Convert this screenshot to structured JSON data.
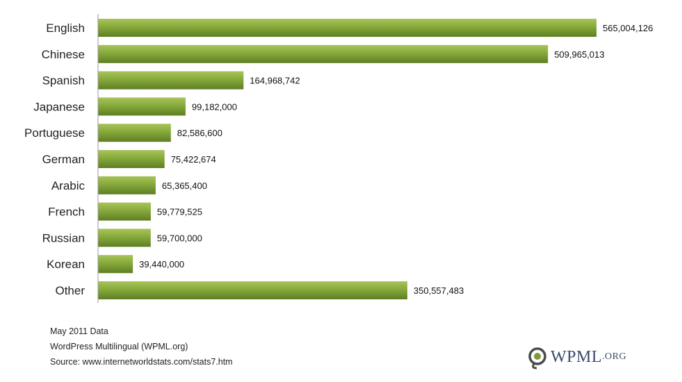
{
  "chart_data": {
    "type": "bar",
    "orientation": "horizontal",
    "categories": [
      "English",
      "Chinese",
      "Spanish",
      "Japanese",
      "Portuguese",
      "German",
      "Arabic",
      "French",
      "Russian",
      "Korean",
      "Other"
    ],
    "values": [
      565004126,
      509965013,
      164968742,
      99182000,
      82586600,
      75422674,
      65365400,
      59779525,
      59700000,
      39440000,
      350557483
    ],
    "value_labels": [
      "565,004,126",
      "509,965,013",
      "164,968,742",
      "99,182,000",
      "82,586,600",
      "75,422,674",
      "65,365,400",
      "59,779,525",
      "59,700,000",
      "39,440,000",
      "350,557,483"
    ],
    "xlim": [
      0,
      565004126
    ],
    "grid": false,
    "legend": "none"
  },
  "colors": {
    "bar_top": "#a8c45a",
    "bar_mid": "#86a93b",
    "bar_bottom": "#5e7e23",
    "axis": "#9a9a9a"
  },
  "footer": {
    "line1": "May 2011 Data",
    "line2": "WordPress Multilingual (WPML.org)",
    "line3": "Source: www.internetworldstats.com/stats7.htm"
  },
  "logo": {
    "icon": "wpml-logo-icon",
    "text_main": "WPML",
    "text_suffix": ".ORG"
  }
}
